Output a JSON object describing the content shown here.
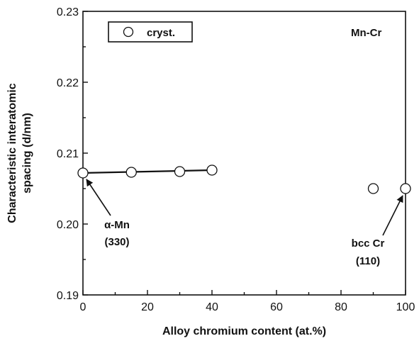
{
  "chart_data": {
    "type": "scatter",
    "xlabel": "Alloy chromium content (at.%)",
    "ylabel_lines": [
      "Characteristic interatomic",
      "spacing (d/nm)"
    ],
    "xlim": [
      0,
      100
    ],
    "ylim": [
      0.19,
      0.23
    ],
    "x_ticks": [
      0,
      20,
      40,
      60,
      80,
      100
    ],
    "x_tick_labels": [
      "0",
      "20",
      "40",
      "60",
      "80",
      "100"
    ],
    "y_ticks": [
      0.19,
      0.2,
      0.21,
      0.22,
      0.23
    ],
    "y_tick_labels": [
      "0.19",
      "0.20",
      "0.21",
      "0.22",
      "0.23"
    ],
    "grid": false,
    "legend_position": "top-left",
    "system_label": "Mn-Cr",
    "series": [
      {
        "name": "cryst.",
        "marker": "open-circle",
        "x": [
          0,
          15,
          30,
          40,
          90,
          100
        ],
        "y": [
          0.2072,
          0.2073,
          0.2074,
          0.2076,
          0.205,
          0.205
        ]
      }
    ],
    "fit_line": {
      "x": [
        0,
        40
      ],
      "y": [
        0.2072,
        0.2076
      ]
    },
    "annotations": [
      {
        "lines": [
          "α-Mn",
          "(330)"
        ],
        "points_to": {
          "x": 0,
          "y": 0.2072
        }
      },
      {
        "lines": [
          "bcc Cr",
          "(110)"
        ],
        "points_to": {
          "x": 100,
          "y": 0.205
        }
      }
    ]
  }
}
